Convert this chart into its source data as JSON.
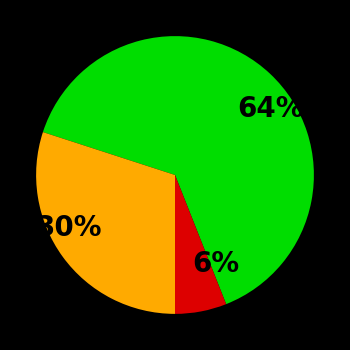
{
  "slices": [
    64,
    6,
    30
  ],
  "colors": [
    "#00dd00",
    "#dd0000",
    "#ffaa00"
  ],
  "labels": [
    "64%",
    "6%",
    "30%"
  ],
  "background_color": "#000000",
  "label_fontsize": 20,
  "label_fontweight": "bold",
  "startangle": 162,
  "labeldistance": 0.65,
  "figsize": [
    3.5,
    3.5
  ],
  "dpi": 100
}
